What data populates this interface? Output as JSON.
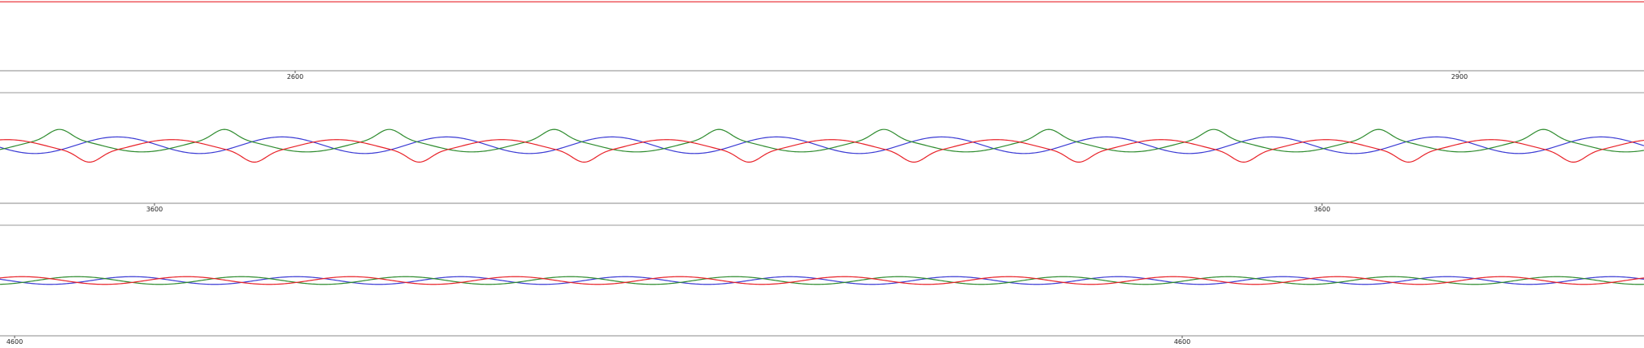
{
  "chart_data": [
    {
      "type": "line",
      "title": "",
      "xlabel": "",
      "ylabel": "",
      "xlim": [
        2350,
        3360
      ],
      "ylim": [
        -1,
        1
      ],
      "x_ticks": [
        2600,
        2900
      ],
      "x_tick_labels": [
        "2600",
        "2900"
      ],
      "grid": false,
      "series": [
        {
          "color": "#e8232a",
          "pattern": "constant",
          "value": 0.95
        }
      ]
    },
    {
      "type": "line",
      "title": "",
      "xlabel": "",
      "ylabel": "",
      "xlim": [
        3468,
        4470
      ],
      "ylim": [
        -1,
        1
      ],
      "x_ticks": [
        3600,
        3600
      ],
      "x_tick_labels": [
        "3600",
        "3600"
      ],
      "grid": false,
      "series": [
        {
          "color": "#3b3bd4",
          "pattern": "sine",
          "amplitude": 0.15,
          "period": 100.5,
          "phase": 0.2,
          "offset": 0.05
        },
        {
          "color": "#2f8c2f",
          "pattern": "sine-spiky",
          "amplitude": 0.22,
          "period": 100.5,
          "phase": 2.4,
          "offset": 0.05
        },
        {
          "color": "#e8232a",
          "pattern": "sine-dip",
          "amplitude": 0.22,
          "period": 100.5,
          "phase": 4.4,
          "offset": 0.03
        }
      ]
    },
    {
      "type": "line",
      "title": "",
      "xlabel": "",
      "ylabel": "",
      "xlim": [
        4590,
        5600
      ],
      "ylim": [
        -1,
        1
      ],
      "x_ticks": [
        4600,
        4600
      ],
      "x_tick_labels": [
        "4600",
        "4600"
      ],
      "grid": false,
      "series": [
        {
          "color": "#3b3bd4",
          "pattern": "sine",
          "amplitude": 0.07,
          "period": 101,
          "phase": 0.0,
          "offset": 0.0
        },
        {
          "color": "#2f8c2f",
          "pattern": "sine",
          "amplitude": 0.07,
          "period": 101,
          "phase": 2.1,
          "offset": 0.0
        },
        {
          "color": "#e8232a",
          "pattern": "sine",
          "amplitude": 0.07,
          "period": 101,
          "phase": 4.2,
          "offset": 0.0
        }
      ]
    }
  ]
}
